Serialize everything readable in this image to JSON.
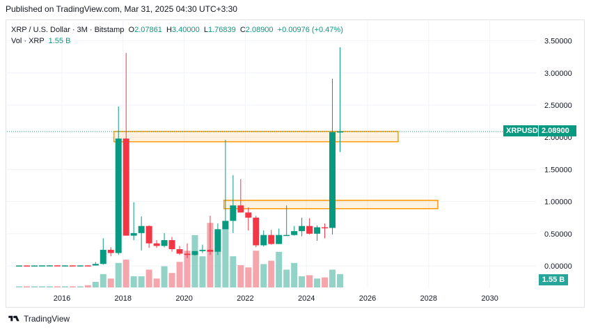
{
  "header": {
    "published_text": "Published on TradingView.com, Mar 31, 2025 04:30 UTC+3:30"
  },
  "legend": {
    "symbol": "XRP / U.S. Dollar · 3M · Bitstamp",
    "o_label": "O",
    "o_value": "2.07861",
    "h_label": "H",
    "h_value": "3.40000",
    "l_label": "L",
    "l_value": "1.76839",
    "c_label": "C",
    "c_value": "2.08900",
    "change": "+0.00976 (+0.47%)",
    "vol_label": "Vol · XRP",
    "vol_value": "1.55 B"
  },
  "price_tag": {
    "symbol": "XRPUSD",
    "value": "2.08900"
  },
  "volume_tag": {
    "value": "1.55 B"
  },
  "footer": {
    "brand": "TradingView"
  },
  "colors": {
    "up": "#089981",
    "down": "#f23645",
    "up_vol": "#92d2c7",
    "down_vol": "#f5a6ad",
    "zone": "#ff9800",
    "grid": "#f0f3fa"
  },
  "chart_data": {
    "type": "candlestick",
    "x_ticks": [
      "2016",
      "2018",
      "2020",
      "2022",
      "2024",
      "2026",
      "2028",
      "2030"
    ],
    "y_ticks": [
      "3.50000",
      "3.00000",
      "2.50000",
      "2.00000",
      "1.50000",
      "1.00000",
      "0.50000",
      "0.00000"
    ],
    "ylim": [
      -0.3,
      3.65
    ],
    "last_price": 2.089,
    "candles": [
      {
        "t": 2014.6,
        "o": 0.006,
        "h": 0.008,
        "l": 0.004,
        "c": 0.006,
        "v": 0.01
      },
      {
        "t": 2014.85,
        "o": 0.006,
        "h": 0.007,
        "l": 0.004,
        "c": 0.005,
        "v": 0.01
      },
      {
        "t": 2015.1,
        "o": 0.005,
        "h": 0.007,
        "l": 0.004,
        "c": 0.006,
        "v": 0.01
      },
      {
        "t": 2015.35,
        "o": 0.006,
        "h": 0.009,
        "l": 0.005,
        "c": 0.007,
        "v": 0.01
      },
      {
        "t": 2015.6,
        "o": 0.007,
        "h": 0.009,
        "l": 0.006,
        "c": 0.008,
        "v": 0.01
      },
      {
        "t": 2015.85,
        "o": 0.008,
        "h": 0.009,
        "l": 0.006,
        "c": 0.006,
        "v": 0.01
      },
      {
        "t": 2016.1,
        "o": 0.006,
        "h": 0.009,
        "l": 0.005,
        "c": 0.007,
        "v": 0.01
      },
      {
        "t": 2016.35,
        "o": 0.007,
        "h": 0.009,
        "l": 0.006,
        "c": 0.006,
        "v": 0.01
      },
      {
        "t": 2016.6,
        "o": 0.006,
        "h": 0.008,
        "l": 0.005,
        "c": 0.007,
        "v": 0.01
      },
      {
        "t": 2016.85,
        "o": 0.007,
        "h": 0.009,
        "l": 0.006,
        "c": 0.006,
        "v": 0.02
      },
      {
        "t": 2017.1,
        "o": 0.006,
        "h": 0.06,
        "l": 0.005,
        "c": 0.03,
        "v": 0.05
      },
      {
        "t": 2017.35,
        "o": 0.03,
        "h": 0.43,
        "l": 0.02,
        "c": 0.25,
        "v": 0.12
      },
      {
        "t": 2017.6,
        "o": 0.25,
        "h": 0.29,
        "l": 0.15,
        "c": 0.2,
        "v": 0.08
      },
      {
        "t": 2017.85,
        "o": 0.2,
        "h": 2.48,
        "l": 0.17,
        "c": 1.98,
        "v": 0.22
      },
      {
        "t": 2018.1,
        "o": 1.98,
        "h": 3.31,
        "l": 0.47,
        "c": 0.47,
        "v": 0.25
      },
      {
        "t": 2018.35,
        "o": 0.47,
        "h": 0.99,
        "l": 0.4,
        "c": 0.51,
        "v": 0.1
      },
      {
        "t": 2018.6,
        "o": 0.51,
        "h": 0.77,
        "l": 0.24,
        "c": 0.62,
        "v": 0.1
      },
      {
        "t": 2018.85,
        "o": 0.62,
        "h": 0.63,
        "l": 0.28,
        "c": 0.35,
        "v": 0.16
      },
      {
        "t": 2019.1,
        "o": 0.35,
        "h": 0.4,
        "l": 0.28,
        "c": 0.31,
        "v": 0.08
      },
      {
        "t": 2019.35,
        "o": 0.31,
        "h": 0.51,
        "l": 0.29,
        "c": 0.4,
        "v": 0.19
      },
      {
        "t": 2019.6,
        "o": 0.4,
        "h": 0.45,
        "l": 0.22,
        "c": 0.26,
        "v": 0.13
      },
      {
        "t": 2019.85,
        "o": 0.26,
        "h": 0.31,
        "l": 0.17,
        "c": 0.19,
        "v": 0.23
      },
      {
        "t": 2020.1,
        "o": 0.19,
        "h": 0.35,
        "l": 0.12,
        "c": 0.17,
        "v": 0.33
      },
      {
        "t": 2020.35,
        "o": 0.17,
        "h": 0.22,
        "l": 0.16,
        "c": 0.23,
        "v": 0.47
      },
      {
        "t": 2020.6,
        "o": 0.23,
        "h": 0.33,
        "l": 0.2,
        "c": 0.25,
        "v": 0.28
      },
      {
        "t": 2020.85,
        "o": 0.25,
        "h": 0.78,
        "l": 0.17,
        "c": 0.22,
        "v": 0.58
      },
      {
        "t": 2021.1,
        "o": 0.22,
        "h": 0.66,
        "l": 0.17,
        "c": 0.57,
        "v": 0.51
      },
      {
        "t": 2021.35,
        "o": 0.57,
        "h": 1.96,
        "l": 0.58,
        "c": 0.7,
        "v": 0.55
      },
      {
        "t": 2021.6,
        "o": 0.7,
        "h": 1.41,
        "l": 0.51,
        "c": 0.94,
        "v": 0.28
      },
      {
        "t": 2021.85,
        "o": 0.94,
        "h": 1.35,
        "l": 0.83,
        "c": 0.83,
        "v": 0.2
      },
      {
        "t": 2022.1,
        "o": 0.83,
        "h": 0.91,
        "l": 0.55,
        "c": 0.75,
        "v": 0.18
      },
      {
        "t": 2022.35,
        "o": 0.75,
        "h": 0.78,
        "l": 0.29,
        "c": 0.32,
        "v": 0.33
      },
      {
        "t": 2022.6,
        "o": 0.32,
        "h": 0.55,
        "l": 0.3,
        "c": 0.48,
        "v": 0.21
      },
      {
        "t": 2022.85,
        "o": 0.48,
        "h": 0.56,
        "l": 0.33,
        "c": 0.34,
        "v": 0.24
      },
      {
        "t": 2023.1,
        "o": 0.34,
        "h": 0.58,
        "l": 0.34,
        "c": 0.48,
        "v": 0.32
      },
      {
        "t": 2023.35,
        "o": 0.48,
        "h": 0.94,
        "l": 0.47,
        "c": 0.48,
        "v": 0.16
      },
      {
        "t": 2023.6,
        "o": 0.48,
        "h": 0.62,
        "l": 0.47,
        "c": 0.54,
        "v": 0.22
      },
      {
        "t": 2023.85,
        "o": 0.54,
        "h": 0.75,
        "l": 0.46,
        "c": 0.62,
        "v": 0.1
      },
      {
        "t": 2024.1,
        "o": 0.62,
        "h": 0.74,
        "l": 0.49,
        "c": 0.5,
        "v": 0.11
      },
      {
        "t": 2024.35,
        "o": 0.5,
        "h": 0.63,
        "l": 0.39,
        "c": 0.6,
        "v": 0.08
      },
      {
        "t": 2024.6,
        "o": 0.6,
        "h": 0.66,
        "l": 0.43,
        "c": 0.59,
        "v": 0.09
      },
      {
        "t": 2024.85,
        "o": 0.59,
        "h": 2.91,
        "l": 0.49,
        "c": 2.08,
        "v": 0.16
      },
      {
        "t": 2025.1,
        "o": 2.08,
        "h": 3.4,
        "l": 1.77,
        "c": 2.09,
        "v": 0.12
      }
    ],
    "zones": [
      {
        "t0": 2017.7,
        "t1": 2027.0,
        "p0": 1.93,
        "p1": 2.09
      },
      {
        "t0": 2021.3,
        "t1": 2028.3,
        "p0": 0.89,
        "p1": 1.02
      }
    ]
  }
}
